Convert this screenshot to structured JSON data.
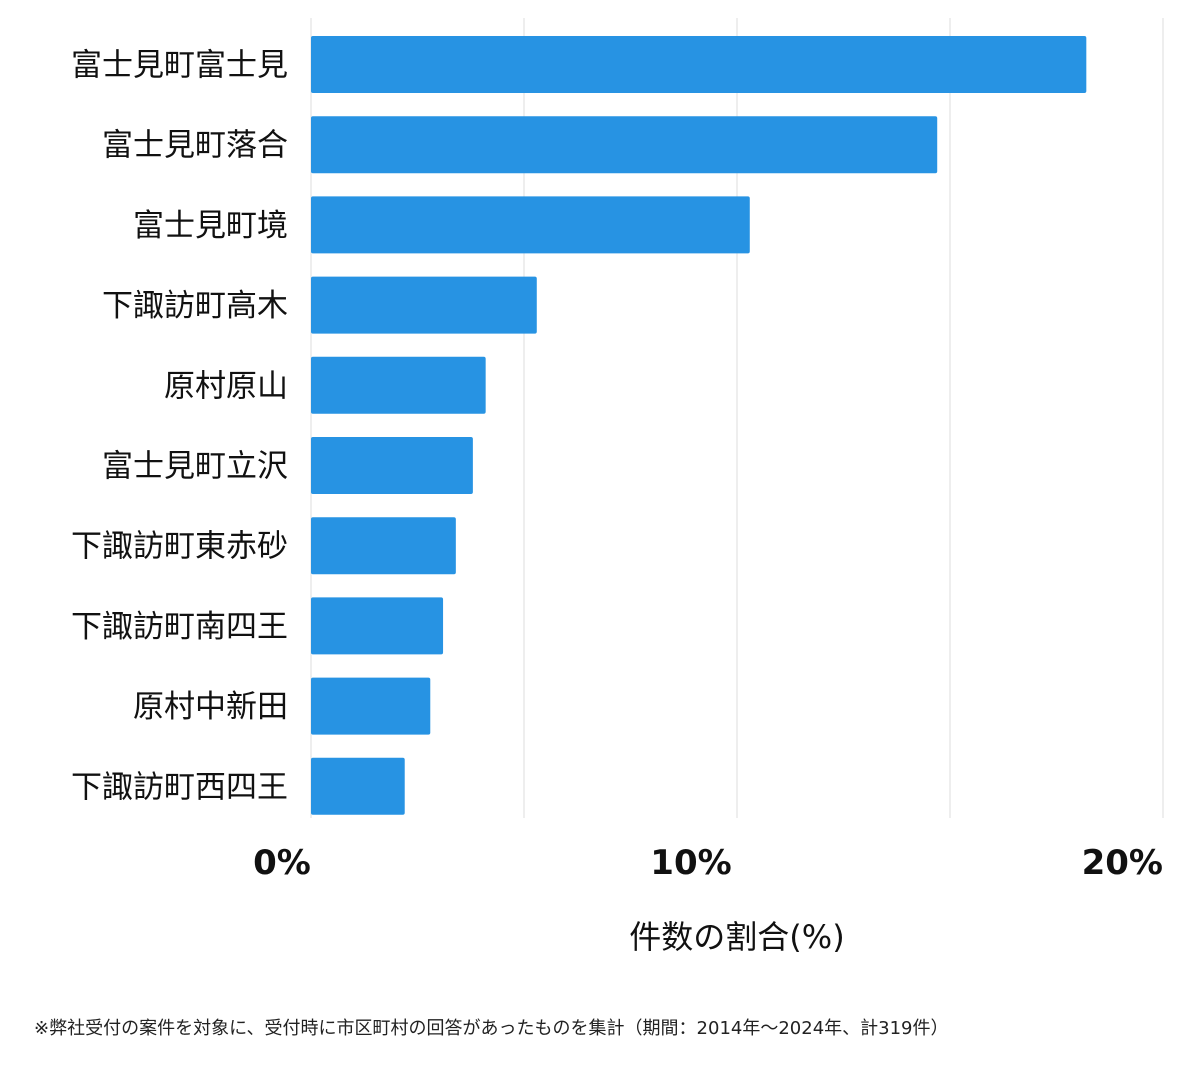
{
  "chart_data": {
    "type": "bar",
    "orientation": "horizontal",
    "categories": [
      "富士見町富士見",
      "富士見町落合",
      "富士見町境",
      "下諏訪町高木",
      "原村原山",
      "富士見町立沢",
      "下諏訪町東赤砂",
      "下諏訪町南四王",
      "原村中新田",
      "下諏訪町西四王"
    ],
    "values": [
      18.2,
      14.7,
      10.3,
      5.3,
      4.1,
      3.8,
      3.4,
      3.1,
      2.8,
      2.2
    ],
    "xlabel": "件数の割合(%)",
    "xlim": [
      0,
      20
    ],
    "xticks": [
      {
        "value": 0,
        "label": "0%"
      },
      {
        "value": 10,
        "label": "10%"
      },
      {
        "value": 20,
        "label": "20%"
      }
    ],
    "gridlines": [
      0,
      5,
      10,
      15,
      20
    ],
    "grid": true,
    "colors": {
      "bar": "#2793e3",
      "grid": "#dddddd",
      "text": "#111111"
    }
  },
  "footnote": "※弊社受付の案件を対象に、受付時に市区町村の回答があったものを集計（期間：2014年〜2024年、計319件）"
}
